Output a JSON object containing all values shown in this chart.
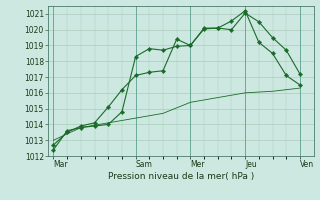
{
  "xlabel": "Pression niveau de la mer( hPa )",
  "bg_color": "#cce8e0",
  "grid_color": "#aaccbb",
  "line_color": "#1a6b2a",
  "ylim": [
    1012,
    1021.5
  ],
  "xlim": [
    -0.2,
    9.5
  ],
  "day_labels": [
    "Mar",
    "Sam",
    "Mer",
    "Jeu",
    "Ven"
  ],
  "day_positions": [
    0,
    3,
    5,
    7,
    9
  ],
  "yticks": [
    1012,
    1013,
    1014,
    1015,
    1016,
    1017,
    1018,
    1019,
    1020,
    1021
  ],
  "line1_x": [
    0,
    0.5,
    1,
    1.5,
    2,
    2.5,
    3,
    3.5,
    4,
    4.5,
    5,
    5.5,
    6,
    6.5,
    7,
    7.5,
    8,
    8.5,
    9
  ],
  "line1_y": [
    1012.4,
    1013.6,
    1013.8,
    1013.9,
    1014.0,
    1014.8,
    1018.3,
    1018.8,
    1018.7,
    1018.95,
    1019.0,
    1020.1,
    1020.1,
    1020.0,
    1021.05,
    1020.5,
    1019.5,
    1018.7,
    1017.2
  ],
  "line2_x": [
    0,
    0.5,
    1,
    1.5,
    2,
    2.5,
    3,
    3.5,
    4,
    4.5,
    5,
    5.5,
    6,
    6.5,
    7,
    7.5,
    8,
    8.5,
    9
  ],
  "line2_y": [
    1012.7,
    1013.5,
    1013.9,
    1014.1,
    1015.1,
    1016.2,
    1017.1,
    1017.3,
    1017.4,
    1019.4,
    1019.0,
    1020.05,
    1020.1,
    1020.55,
    1021.2,
    1019.2,
    1018.5,
    1017.1,
    1016.5
  ],
  "line3_x": [
    0,
    1,
    2,
    3,
    4,
    5,
    6,
    7,
    8,
    9
  ],
  "line3_y": [
    1013.0,
    1013.8,
    1014.1,
    1014.4,
    1014.7,
    1015.4,
    1015.7,
    1016.0,
    1016.1,
    1016.3
  ],
  "xlabel_fontsize": 6.5,
  "tick_fontsize": 5.5,
  "line_width": 0.8,
  "marker_size": 2.2
}
